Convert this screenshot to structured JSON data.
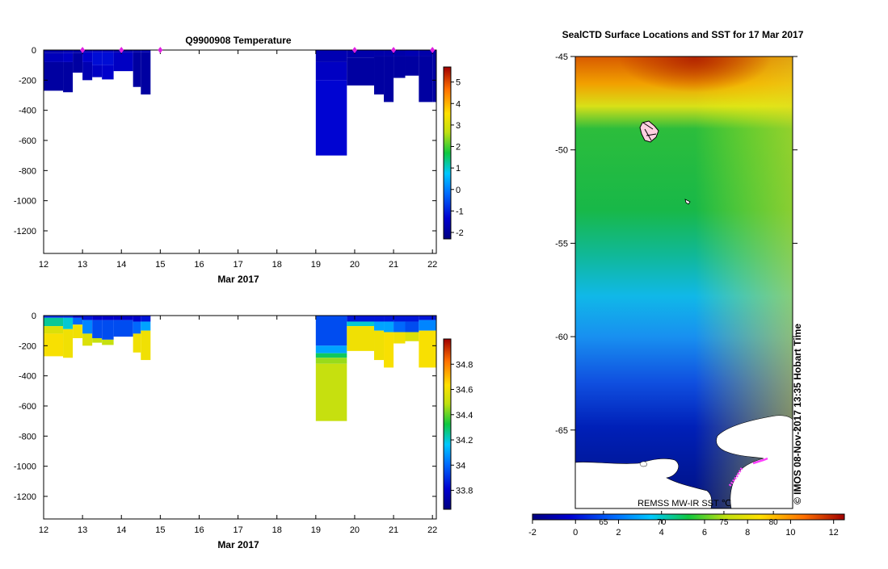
{
  "chart_data": [
    {
      "type": "heatmap",
      "name": "temperature-section",
      "title": "Q9900908  Temperature",
      "xlabel": "Mar 2017",
      "ylabel": "",
      "x_tick_labels": [
        "12",
        "13",
        "14",
        "15",
        "16",
        "17",
        "18",
        "19",
        "20",
        "21",
        "22"
      ],
      "x_ticks": [
        12,
        13,
        14,
        15,
        16,
        17,
        18,
        19,
        20,
        21,
        22
      ],
      "xlim": [
        12,
        22.1
      ],
      "y_ticks": [
        0,
        -200,
        -400,
        -600,
        -800,
        -1000,
        -1200
      ],
      "y_tick_labels": [
        "0",
        "-200",
        "-400",
        "-600",
        "-800",
        "-1000",
        "-1200"
      ],
      "ylim": [
        -1350,
        0
      ],
      "profile_markers": [
        13.0,
        14.0,
        15.0,
        20.0,
        21.0,
        22.0
      ],
      "colorbar": {
        "range": [
          -2.3,
          5.7
        ],
        "ticks": [
          5,
          4,
          3,
          2,
          1,
          0,
          -1,
          -2
        ],
        "tick_labels": [
          "5",
          "4",
          "3",
          "2",
          "1",
          "0",
          "-1",
          "-2"
        ]
      },
      "profiles": [
        {
          "x0": 12.0,
          "x1": 12.5,
          "depth": -270,
          "layers": [
            {
              "z": -20,
              "v": -1.8
            },
            {
              "z": -80,
              "v": -1.6
            },
            {
              "z": -270,
              "v": -1.9
            }
          ]
        },
        {
          "x0": 12.5,
          "x1": 12.75,
          "depth": -280,
          "layers": [
            {
              "z": -20,
              "v": -1.7
            },
            {
              "z": -80,
              "v": -1.5
            },
            {
              "z": -280,
              "v": -1.9
            }
          ]
        },
        {
          "x0": 12.75,
          "x1": 13.0,
          "depth": -150,
          "layers": [
            {
              "z": -20,
              "v": -1.8
            },
            {
              "z": -150,
              "v": -1.9
            }
          ]
        },
        {
          "x0": 13.0,
          "x1": 13.25,
          "depth": -200,
          "layers": [
            {
              "z": -15,
              "v": -1.7
            },
            {
              "z": -80,
              "v": -1.4
            },
            {
              "z": -200,
              "v": -1.7
            }
          ]
        },
        {
          "x0": 13.25,
          "x1": 13.5,
          "depth": -180,
          "layers": [
            {
              "z": -15,
              "v": -1.6
            },
            {
              "z": -100,
              "v": -1.2
            },
            {
              "z": -180,
              "v": -1.5
            }
          ]
        },
        {
          "x0": 13.5,
          "x1": 13.8,
          "depth": -195,
          "layers": [
            {
              "z": -15,
              "v": -1.6
            },
            {
              "z": -100,
              "v": -1.2
            },
            {
              "z": -195,
              "v": -1.4
            }
          ]
        },
        {
          "x0": 13.8,
          "x1": 14.3,
          "depth": -140,
          "layers": [
            {
              "z": -15,
              "v": -1.8
            },
            {
              "z": -140,
              "v": -1.5
            }
          ]
        },
        {
          "x0": 14.3,
          "x1": 14.5,
          "depth": -245,
          "layers": [
            {
              "z": -15,
              "v": -1.8
            },
            {
              "z": -245,
              "v": -1.9
            }
          ]
        },
        {
          "x0": 14.5,
          "x1": 14.75,
          "depth": -295,
          "layers": [
            {
              "z": -15,
              "v": -1.7
            },
            {
              "z": -295,
              "v": -1.9
            }
          ]
        },
        {
          "x0": 19.0,
          "x1": 19.8,
          "depth": -700,
          "layers": [
            {
              "z": -80,
              "v": -1.7
            },
            {
              "z": -200,
              "v": -1.5
            },
            {
              "z": -700,
              "v": -1.3
            }
          ]
        },
        {
          "x0": 19.8,
          "x1": 20.5,
          "depth": -235,
          "layers": [
            {
              "z": -50,
              "v": -1.8
            },
            {
              "z": -235,
              "v": -1.9
            }
          ]
        },
        {
          "x0": 20.5,
          "x1": 20.75,
          "depth": -295,
          "layers": [
            {
              "z": -40,
              "v": -1.8
            },
            {
              "z": -295,
              "v": -1.9
            }
          ]
        },
        {
          "x0": 20.75,
          "x1": 21.0,
          "depth": -345,
          "layers": [
            {
              "z": -40,
              "v": -1.8
            },
            {
              "z": -345,
              "v": -1.9
            }
          ]
        },
        {
          "x0": 21.0,
          "x1": 21.3,
          "depth": -185,
          "layers": [
            {
              "z": -40,
              "v": -1.8
            },
            {
              "z": -185,
              "v": -1.9
            }
          ]
        },
        {
          "x0": 21.3,
          "x1": 21.65,
          "depth": -170,
          "layers": [
            {
              "z": -40,
              "v": -1.7
            },
            {
              "z": -170,
              "v": -1.9
            }
          ]
        },
        {
          "x0": 21.65,
          "x1": 22.0,
          "depth": -345,
          "layers": [
            {
              "z": -40,
              "v": -1.8
            },
            {
              "z": -345,
              "v": -1.9
            }
          ]
        },
        {
          "x0": 22.0,
          "x1": 22.1,
          "depth": -345,
          "layers": [
            {
              "z": -345,
              "v": -1.9
            }
          ]
        }
      ]
    },
    {
      "type": "heatmap",
      "name": "salinity-section",
      "title": "",
      "xlabel": "Mar 2017",
      "ylabel": "",
      "x_tick_labels": [
        "12",
        "13",
        "14",
        "15",
        "16",
        "17",
        "18",
        "19",
        "20",
        "21",
        "22"
      ],
      "x_ticks": [
        12,
        13,
        14,
        15,
        16,
        17,
        18,
        19,
        20,
        21,
        22
      ],
      "xlim": [
        12,
        22.1
      ],
      "y_ticks": [
        0,
        -200,
        -400,
        -600,
        -800,
        -1000,
        -1200
      ],
      "y_tick_labels": [
        "0",
        "-200",
        "-400",
        "-600",
        "-800",
        "-1000",
        "-1200"
      ],
      "ylim": [
        -1350,
        0
      ],
      "colorbar": {
        "range": [
          33.65,
          35.0
        ],
        "ticks": [
          34.8,
          34.6,
          34.4,
          34.2,
          34,
          33.8
        ],
        "tick_labels": [
          "34.8",
          "34.6",
          "34.4",
          "34.2",
          "34",
          "33.8"
        ]
      },
      "profiles": [
        {
          "x0": 12.0,
          "x1": 12.5,
          "depth": -270,
          "layers": [
            {
              "z": -15,
              "v": 33.9
            },
            {
              "z": -70,
              "v": 34.25
            },
            {
              "z": -120,
              "v": 34.55
            },
            {
              "z": -270,
              "v": 34.62
            }
          ]
        },
        {
          "x0": 12.5,
          "x1": 12.75,
          "depth": -280,
          "layers": [
            {
              "z": -15,
              "v": 33.9
            },
            {
              "z": -90,
              "v": 34.2
            },
            {
              "z": -280,
              "v": 34.6
            }
          ]
        },
        {
          "x0": 12.75,
          "x1": 13.0,
          "depth": -150,
          "layers": [
            {
              "z": -15,
              "v": 33.8
            },
            {
              "z": -60,
              "v": 34.0
            },
            {
              "z": -150,
              "v": 34.6
            }
          ]
        },
        {
          "x0": 13.0,
          "x1": 13.25,
          "depth": -200,
          "layers": [
            {
              "z": -30,
              "v": 33.85
            },
            {
              "z": -120,
              "v": 34.05
            },
            {
              "z": -200,
              "v": 34.55
            }
          ]
        },
        {
          "x0": 13.25,
          "x1": 13.5,
          "depth": -180,
          "layers": [
            {
              "z": -30,
              "v": 33.8
            },
            {
              "z": -150,
              "v": 33.95
            },
            {
              "z": -180,
              "v": 34.5
            }
          ]
        },
        {
          "x0": 13.5,
          "x1": 13.8,
          "depth": -195,
          "layers": [
            {
              "z": -30,
              "v": 33.8
            },
            {
              "z": -160,
              "v": 33.95
            },
            {
              "z": -195,
              "v": 34.5
            }
          ]
        },
        {
          "x0": 13.8,
          "x1": 14.3,
          "depth": -140,
          "layers": [
            {
              "z": -30,
              "v": 33.8
            },
            {
              "z": -140,
              "v": 33.95
            }
          ]
        },
        {
          "x0": 14.3,
          "x1": 14.5,
          "depth": -245,
          "layers": [
            {
              "z": -40,
              "v": 33.8
            },
            {
              "z": -120,
              "v": 34.0
            },
            {
              "z": -245,
              "v": 34.6
            }
          ]
        },
        {
          "x0": 14.5,
          "x1": 14.75,
          "depth": -295,
          "layers": [
            {
              "z": -40,
              "v": 33.85
            },
            {
              "z": -100,
              "v": 34.1
            },
            {
              "z": -295,
              "v": 34.6
            }
          ]
        },
        {
          "x0": 19.0,
          "x1": 19.8,
          "depth": -700,
          "layers": [
            {
              "z": -200,
              "v": 33.95
            },
            {
              "z": -250,
              "v": 34.1
            },
            {
              "z": -280,
              "v": 34.3
            },
            {
              "z": -320,
              "v": 34.45
            },
            {
              "z": -700,
              "v": 34.5
            }
          ]
        },
        {
          "x0": 19.8,
          "x1": 20.5,
          "depth": -235,
          "layers": [
            {
              "z": -40,
              "v": 33.85
            },
            {
              "z": -70,
              "v": 34.2
            },
            {
              "z": -235,
              "v": 34.6
            }
          ]
        },
        {
          "x0": 20.5,
          "x1": 20.75,
          "depth": -295,
          "layers": [
            {
              "z": -40,
              "v": 33.85
            },
            {
              "z": -100,
              "v": 34.1
            },
            {
              "z": -295,
              "v": 34.6
            }
          ]
        },
        {
          "x0": 20.75,
          "x1": 21.0,
          "depth": -345,
          "layers": [
            {
              "z": -40,
              "v": 33.85
            },
            {
              "z": -110,
              "v": 34.1
            },
            {
              "z": -345,
              "v": 34.62
            }
          ]
        },
        {
          "x0": 21.0,
          "x1": 21.3,
          "depth": -185,
          "layers": [
            {
              "z": -40,
              "v": 33.85
            },
            {
              "z": -110,
              "v": 34.0
            },
            {
              "z": -185,
              "v": 34.6
            }
          ]
        },
        {
          "x0": 21.3,
          "x1": 21.65,
          "depth": -170,
          "layers": [
            {
              "z": -40,
              "v": 33.85
            },
            {
              "z": -110,
              "v": 33.95
            },
            {
              "z": -170,
              "v": 34.55
            }
          ]
        },
        {
          "x0": 21.65,
          "x1": 22.1,
          "depth": -345,
          "layers": [
            {
              "z": -30,
              "v": 33.85
            },
            {
              "z": -100,
              "v": 34.05
            },
            {
              "z": -345,
              "v": 34.62
            }
          ]
        }
      ]
    },
    {
      "type": "heatmap",
      "name": "sst-map",
      "title": "SealCTD Surface Locations and SST for 17 Mar 2017",
      "y_tick_labels": [
        "-45",
        "-50",
        "-55",
        "-60",
        "-65"
      ],
      "y_ticks": [
        -45,
        -50,
        -55,
        -60,
        -65
      ],
      "lat_range": [
        -45,
        -69.2
      ],
      "source_label": "REMSS MW-IR SST ℃",
      "side_label": "©  IMOS 08-Nov-2017 13:35 Hobart Time",
      "colorbar": {
        "range": [
          -2,
          12.5
        ],
        "ticks": [
          -2,
          0,
          2,
          4,
          6,
          8,
          10,
          12
        ],
        "tick_labels": [
          "-2",
          "0",
          "2",
          "4",
          "6",
          "8",
          "10",
          "12"
        ],
        "fahrenheit_labels": [
          "65",
          "70",
          "75",
          "80"
        ],
        "fahrenheit_positions": [
          1.3,
          4.0,
          6.9,
          9.2
        ]
      }
    }
  ]
}
